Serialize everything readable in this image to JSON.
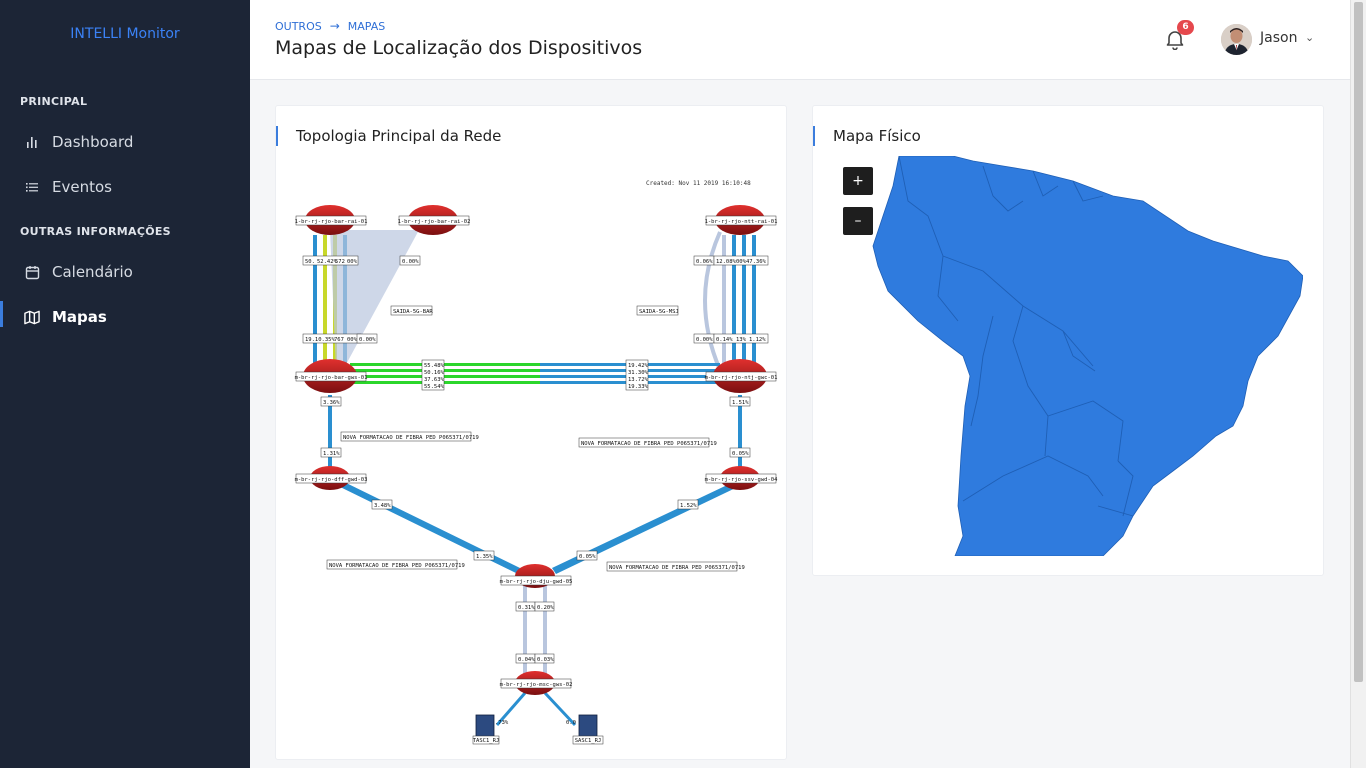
{
  "app": {
    "brand": "INTELLI Monitor"
  },
  "sidebar": {
    "sections": [
      {
        "title": "PRINCIPAL"
      },
      {
        "title": "OUTRAS INFORMAÇÕES"
      }
    ],
    "items": [
      {
        "label": "Dashboard",
        "icon": "bar-chart-icon"
      },
      {
        "label": "Eventos",
        "icon": "list-icon"
      },
      {
        "label": "Calendário",
        "icon": "calendar-icon"
      },
      {
        "label": "Mapas",
        "icon": "map-icon",
        "active": true
      }
    ]
  },
  "header": {
    "breadcrumb": [
      "OUTROS",
      "MAPAS"
    ],
    "title": "Mapas de Localização dos Dispositivos",
    "notifications": {
      "count": "6",
      "icon": "bell-icon"
    },
    "user": {
      "name": "Jason"
    }
  },
  "cards": {
    "topology": {
      "title": "Topologia Principal da Rede"
    },
    "physical_map": {
      "title": "Mapa Físico",
      "zoom_in": "+",
      "zoom_out": "–"
    }
  },
  "topology_diagram": {
    "created": "Created: Nov 11 2019 16:10:48",
    "nodes": {
      "n1": "1-br-rj-rjo-bar-rai-01",
      "n2": "1-br-rj-rjo-bar-rai-02",
      "n3": "1-br-rj-rjo-ntt-rai-01",
      "n4": "m-br-rj-rjo-bar-gws-01",
      "n5": "m-br-rj-rjo-ntj-gwc-01",
      "n6": "m-br-rj-rjo-dff-gwd-03",
      "n7": "m-br-rj-rjo-ssv-gwd-04",
      "n8": "m-br-rj-rjo-dju-gwd-05",
      "n9": "m-br-rj-rjo-msc-gws-02",
      "s1": "TASC1_RJ",
      "s2": "SASC1_RJ"
    },
    "labels": {
      "a1": "50.",
      "a2": "52.42%",
      "a3": "572",
      "a4": "00%",
      "a5": "0.00%",
      "a6": "0.06%",
      "a7": "12.08%",
      "a8": "00%",
      "a9": "47.36%",
      "b1": "19.10.35%",
      "b2": "767",
      "b3": "00%",
      "b4": "0.00%",
      "b5": "0.00%",
      "b6": "0.14%",
      "b7": "13%",
      "b8": "1.12%",
      "c1": "55.48%",
      "c2": "50.16%",
      "c3": "37.63%",
      "c4": "55.54%",
      "c5": "19.42%",
      "c6": "31.30%",
      "c7": "13.72%",
      "c8": "19.33%",
      "d1": "3.36%",
      "d2": "1.51%",
      "d3": "1.31%",
      "d4": "0.05%",
      "d5": "3.48%",
      "d6": "1.52%",
      "d7": "1.35%",
      "d8": "0.05%",
      "e1": "0.31%",
      "e2": "0.20%",
      "e3": "0.04%",
      "e4": "0.03%",
      "e5": ".73%",
      "e6": "0.0",
      "f1": "SAIDA-5G-BAR",
      "f2": "SAIDA-5G-MSJ",
      "f3": "NOVA FORMATACAO DE FIBRA PED P065371/0719"
    }
  },
  "colors": {
    "sidebar_bg": "#1c2536",
    "accent": "#3b7ddd",
    "map_land": "#2f7bde",
    "badge": "#e5484d"
  }
}
